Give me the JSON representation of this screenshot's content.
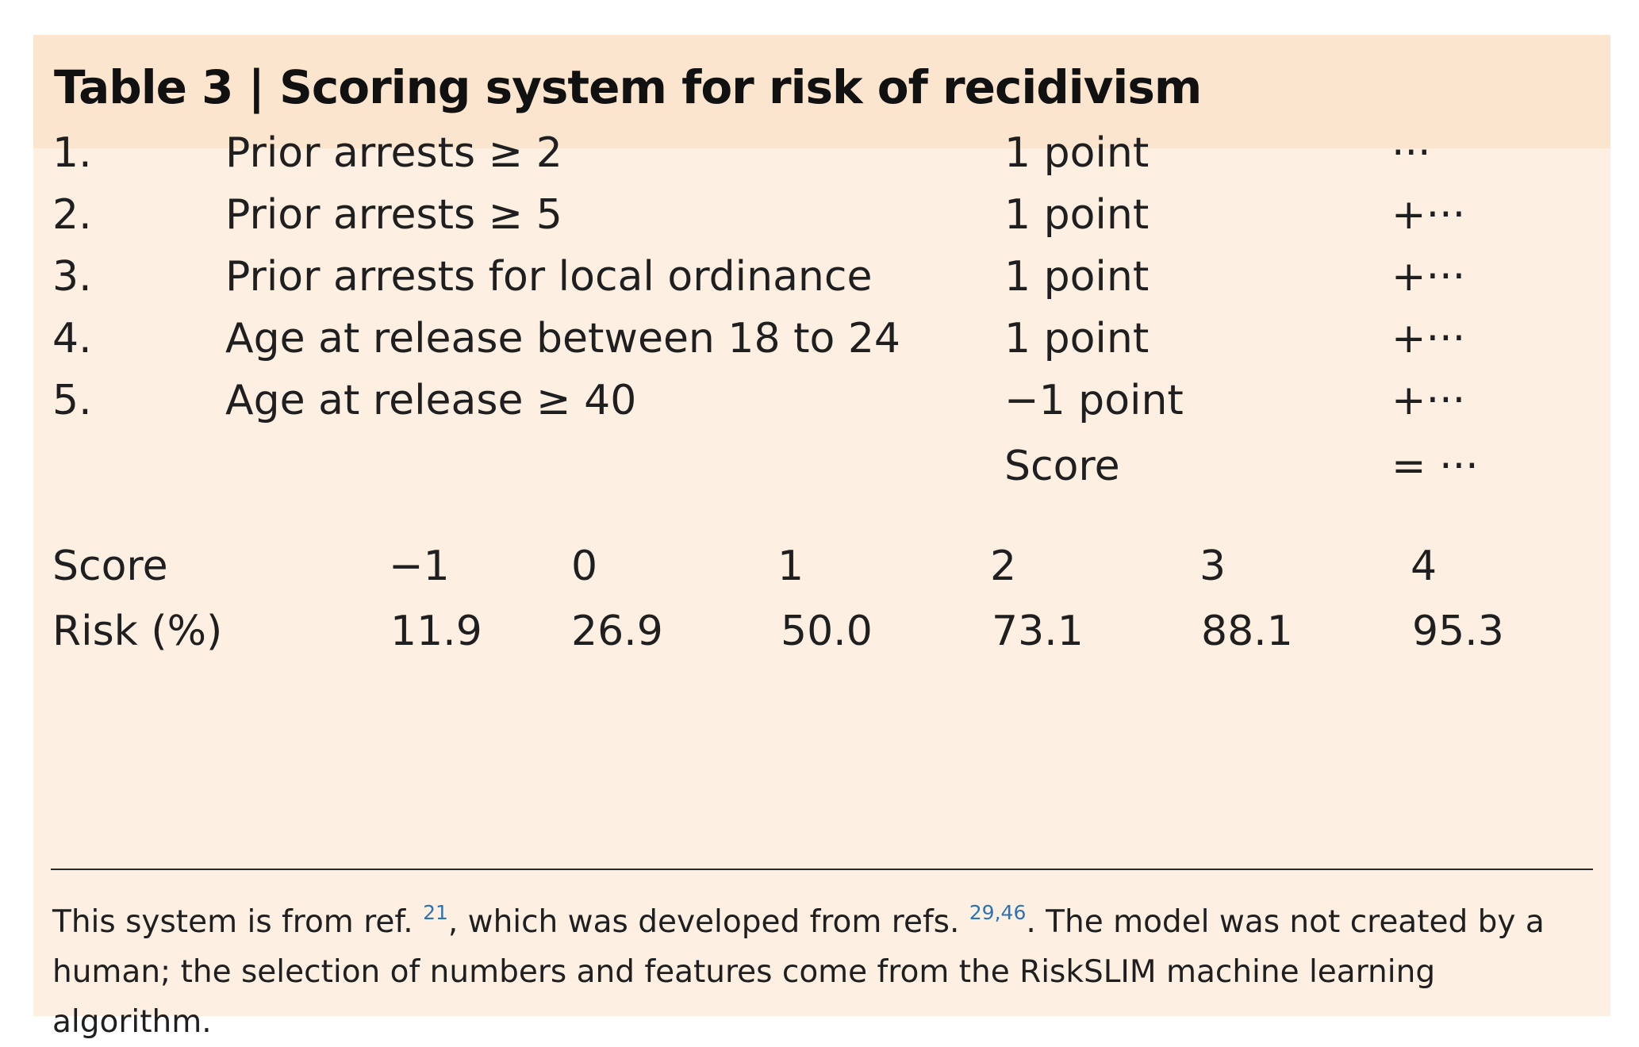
{
  "table": {
    "title": "Table 3 | Scoring system for risk of recidivism",
    "rules": [
      {
        "num": "1.",
        "condition": "Prior arrests ≥ 2",
        "points": "1 point",
        "accumulator": "···"
      },
      {
        "num": "2.",
        "condition": "Prior arrests ≥ 5",
        "points": "1 point",
        "accumulator": "+···"
      },
      {
        "num": "3.",
        "condition": "Prior arrests for local ordinance",
        "points": "1 point",
        "accumulator": "+···"
      },
      {
        "num": "4.",
        "condition": "Age at release between 18 to 24",
        "points": "1 point",
        "accumulator": "+···"
      },
      {
        "num": "5.",
        "condition": "Age at release ≥ 40",
        "points": "−1 point",
        "accumulator": "+···"
      }
    ],
    "total": {
      "label": "Score",
      "accumulator": "= ···"
    },
    "risk_table": {
      "score_label": "Score",
      "risk_label": "Risk (%)",
      "scores": [
        "−1",
        "0",
        "1",
        "2",
        "3",
        "4"
      ],
      "risks": [
        "11.9",
        "26.9",
        "50.0",
        "73.1",
        "88.1",
        "95.3"
      ]
    },
    "footnote": {
      "part1": "This system is from ref. ",
      "ref1": "21",
      "part2": ", which was developed from refs. ",
      "ref2": "29,46",
      "part3": ". The model was not created by a human; the selection of numbers and features come from the RiskSLIM machine learning algorithm."
    }
  },
  "colors": {
    "header_bg": "#fbe5cf",
    "panel_bg": "#fdf0e3",
    "ref_link": "#2b73b6"
  }
}
